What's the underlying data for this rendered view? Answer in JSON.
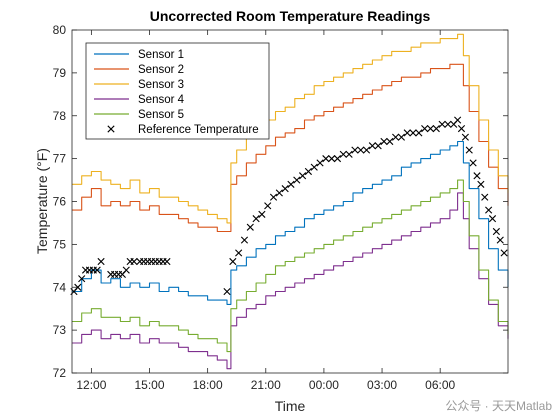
{
  "chart_data": {
    "type": "line",
    "title": "Uncorrected Room Temperature Readings",
    "xlabel": "Time",
    "ylabel": "Temperature (°F)",
    "xlim": [
      11,
      33.5
    ],
    "ylim": [
      72,
      80
    ],
    "x_ticks": [
      12,
      15,
      18,
      21,
      24,
      27,
      30
    ],
    "x_tick_labels": [
      "12:00",
      "15:00",
      "18:00",
      "21:00",
      "00:00",
      "03:00",
      "06:00"
    ],
    "y_ticks": [
      72,
      73,
      74,
      75,
      76,
      77,
      78,
      79,
      80
    ],
    "y_tick_labels": [
      "72",
      "73",
      "74",
      "75",
      "76",
      "77",
      "78",
      "79",
      "80"
    ],
    "legend_position": "top-left",
    "grid": false,
    "series": [
      {
        "name": "Sensor 1",
        "color": "#0072BD",
        "x": [
          11,
          11.5,
          12,
          12.5,
          13,
          13.5,
          14,
          14.5,
          15,
          15.5,
          16,
          16.5,
          17,
          17.5,
          18,
          18.5,
          19.0,
          19.2,
          19.5,
          20,
          20.5,
          21,
          21.5,
          22,
          22.5,
          23,
          23.5,
          24,
          24.5,
          25,
          25.5,
          26,
          26.5,
          27,
          27.5,
          28,
          28.5,
          29,
          29.5,
          30,
          30.5,
          30.9,
          31.2,
          31.5,
          32,
          32.5,
          33,
          33.5
        ],
        "y": [
          73.9,
          74.2,
          74.4,
          74.1,
          74.2,
          74.0,
          74.1,
          74.0,
          74.1,
          73.9,
          74.0,
          73.9,
          73.8,
          73.8,
          73.7,
          73.7,
          73.6,
          74.4,
          74.5,
          74.7,
          74.9,
          75.0,
          75.2,
          75.3,
          75.4,
          75.6,
          75.7,
          75.8,
          75.9,
          76.0,
          76.2,
          76.3,
          76.4,
          76.5,
          76.6,
          76.8,
          76.9,
          77.0,
          77.1,
          77.2,
          77.3,
          77.4,
          76.9,
          76.3,
          75.6,
          74.9,
          74.4,
          74.0
        ]
      },
      {
        "name": "Sensor 2",
        "color": "#D95319",
        "x": [
          11,
          11.5,
          12,
          12.5,
          13,
          13.5,
          14,
          14.5,
          15,
          15.5,
          16,
          16.5,
          17,
          17.5,
          18,
          18.5,
          19.0,
          19.2,
          19.5,
          20,
          20.5,
          21,
          21.5,
          22,
          22.5,
          23,
          23.5,
          24,
          24.5,
          25,
          25.5,
          26,
          26.5,
          27,
          27.5,
          28,
          28.5,
          29,
          29.5,
          30,
          30.5,
          30.9,
          31.2,
          31.5,
          32,
          32.5,
          33,
          33.5
        ],
        "y": [
          75.8,
          76.1,
          76.3,
          75.9,
          76.0,
          75.9,
          76.0,
          75.8,
          75.9,
          75.7,
          75.7,
          75.6,
          75.5,
          75.4,
          75.4,
          75.3,
          75.3,
          76.4,
          76.6,
          76.9,
          77.1,
          77.3,
          77.5,
          77.6,
          77.7,
          77.9,
          78.0,
          78.1,
          78.2,
          78.3,
          78.4,
          78.5,
          78.6,
          78.7,
          78.8,
          78.9,
          78.9,
          79.0,
          79.1,
          79.1,
          79.2,
          79.2,
          78.7,
          78.1,
          77.4,
          76.8,
          76.3,
          75.9
        ]
      },
      {
        "name": "Sensor 3",
        "color": "#EDB120",
        "x": [
          11,
          11.5,
          12,
          12.5,
          13,
          13.5,
          14,
          14.5,
          15,
          15.5,
          16,
          16.5,
          17,
          17.5,
          18,
          18.5,
          19.0,
          19.2,
          19.5,
          20,
          20.5,
          21,
          21.5,
          22,
          22.5,
          23,
          23.5,
          24,
          24.5,
          25,
          25.5,
          26,
          26.5,
          27,
          27.5,
          28,
          28.5,
          29,
          29.5,
          30,
          30.5,
          30.9,
          31.2,
          31.5,
          32,
          32.5,
          33,
          33.5
        ],
        "y": [
          76.4,
          76.6,
          76.7,
          76.5,
          76.4,
          76.3,
          76.5,
          76.2,
          76.3,
          76.1,
          76.1,
          76.0,
          75.9,
          75.8,
          75.7,
          75.6,
          75.5,
          76.9,
          77.2,
          77.5,
          77.7,
          77.9,
          78.1,
          78.2,
          78.4,
          78.5,
          78.7,
          78.8,
          78.9,
          79.0,
          79.1,
          79.2,
          79.3,
          79.4,
          79.5,
          79.5,
          79.6,
          79.7,
          79.7,
          79.8,
          79.8,
          79.9,
          79.4,
          78.7,
          77.9,
          77.2,
          76.6,
          76.2
        ]
      },
      {
        "name": "Sensor 4",
        "color": "#7E2F8E",
        "x": [
          11,
          11.5,
          12,
          12.5,
          13,
          13.5,
          14,
          14.5,
          15,
          15.5,
          16,
          16.5,
          17,
          17.5,
          18,
          18.5,
          19.0,
          19.2,
          19.5,
          20,
          20.5,
          21,
          21.5,
          22,
          22.5,
          23,
          23.5,
          24,
          24.5,
          25,
          25.5,
          26,
          26.5,
          27,
          27.5,
          28,
          28.5,
          29,
          29.5,
          30,
          30.5,
          30.9,
          31.2,
          31.5,
          32,
          32.5,
          33,
          33.5
        ],
        "y": [
          72.7,
          72.9,
          73.0,
          72.8,
          72.9,
          72.8,
          72.9,
          72.7,
          72.8,
          72.7,
          72.7,
          72.6,
          72.5,
          72.5,
          72.4,
          72.3,
          72.1,
          73.1,
          73.3,
          73.5,
          73.6,
          73.8,
          73.9,
          74.0,
          74.1,
          74.2,
          74.3,
          74.4,
          74.5,
          74.6,
          74.7,
          74.8,
          74.9,
          75.0,
          75.1,
          75.2,
          75.3,
          75.4,
          75.5,
          75.6,
          75.8,
          76.2,
          75.6,
          74.9,
          74.2,
          73.6,
          73.1,
          72.8
        ]
      },
      {
        "name": "Sensor 5",
        "color": "#77AC30",
        "x": [
          11,
          11.5,
          12,
          12.5,
          13,
          13.5,
          14,
          14.5,
          15,
          15.5,
          16,
          16.5,
          17,
          17.5,
          18,
          18.5,
          19.0,
          19.2,
          19.5,
          20,
          20.5,
          21,
          21.5,
          22,
          22.5,
          23,
          23.5,
          24,
          24.5,
          25,
          25.5,
          26,
          26.5,
          27,
          27.5,
          28,
          28.5,
          29,
          29.5,
          30,
          30.5,
          30.9,
          31.2,
          31.5,
          32,
          32.5,
          33,
          33.5
        ],
        "y": [
          73.2,
          73.4,
          73.5,
          73.3,
          73.3,
          73.2,
          73.3,
          73.1,
          73.2,
          73.1,
          73.1,
          73.0,
          72.9,
          72.8,
          72.8,
          72.7,
          72.5,
          73.5,
          73.7,
          73.9,
          74.1,
          74.3,
          74.5,
          74.6,
          74.7,
          74.8,
          74.9,
          75.0,
          75.1,
          75.2,
          75.3,
          75.4,
          75.5,
          75.6,
          75.7,
          75.8,
          75.9,
          76.0,
          76.1,
          76.2,
          76.3,
          76.5,
          76.0,
          75.2,
          74.4,
          73.7,
          73.2,
          72.9
        ]
      }
    ],
    "reference": {
      "name": "Reference Temperature",
      "color": "#000000",
      "marker": "x",
      "x": [
        11.1,
        11.3,
        11.5,
        11.7,
        11.9,
        12.1,
        12.3,
        12.5,
        13.0,
        13.2,
        13.4,
        13.6,
        13.8,
        14.0,
        14.2,
        14.5,
        14.7,
        14.9,
        15.1,
        15.3,
        15.5,
        15.7,
        15.9,
        19.0,
        19.3,
        19.6,
        19.9,
        20.2,
        20.5,
        20.8,
        21.1,
        21.4,
        21.7,
        22.0,
        22.3,
        22.6,
        22.9,
        23.2,
        23.5,
        23.8,
        24.1,
        24.4,
        24.7,
        25.0,
        25.3,
        25.6,
        25.9,
        26.2,
        26.5,
        26.8,
        27.1,
        27.4,
        27.7,
        28.0,
        28.3,
        28.6,
        28.9,
        29.2,
        29.5,
        29.8,
        30.1,
        30.4,
        30.7,
        30.9,
        31.1,
        31.3,
        31.5,
        31.7,
        31.9,
        32.1,
        32.3,
        32.5,
        32.7,
        32.9,
        33.1,
        33.3
      ],
      "y": [
        73.9,
        74.0,
        74.2,
        74.4,
        74.4,
        74.4,
        74.4,
        74.6,
        74.3,
        74.3,
        74.3,
        74.3,
        74.4,
        74.6,
        74.6,
        74.6,
        74.6,
        74.6,
        74.6,
        74.6,
        74.6,
        74.6,
        74.6,
        73.9,
        74.6,
        74.8,
        75.1,
        75.4,
        75.6,
        75.7,
        75.9,
        76.1,
        76.2,
        76.3,
        76.4,
        76.5,
        76.6,
        76.7,
        76.8,
        76.9,
        77.0,
        77.0,
        77.0,
        77.1,
        77.1,
        77.2,
        77.2,
        77.2,
        77.3,
        77.3,
        77.4,
        77.4,
        77.5,
        77.5,
        77.6,
        77.6,
        77.6,
        77.7,
        77.7,
        77.7,
        77.8,
        77.8,
        77.8,
        77.9,
        77.7,
        77.5,
        77.2,
        76.9,
        76.6,
        76.4,
        76.1,
        75.8,
        75.6,
        75.3,
        75.1,
        74.8
      ]
    }
  },
  "watermark": "公众号 · 天天Matlab"
}
